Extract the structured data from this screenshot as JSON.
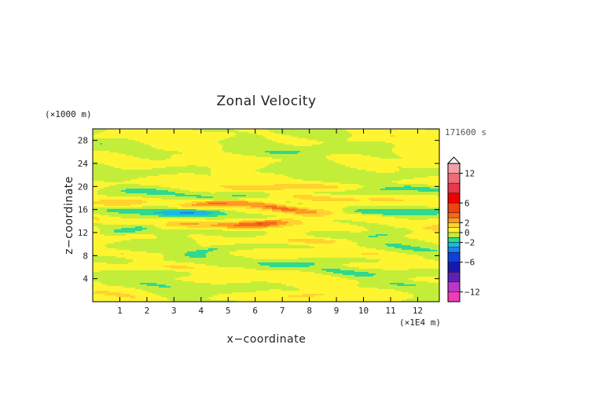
{
  "chart_data": {
    "type": "heatmap",
    "title": "Zonal Velocity",
    "xlabel": "x−coordinate",
    "ylabel": "z−coordinate",
    "x_unit_label": "(×1E4 m)",
    "y_unit_label": "(×1000 m)",
    "time_label": "171600 s",
    "xlim": [
      0,
      12.8
    ],
    "ylim": [
      0,
      30
    ],
    "x_ticks": [
      1,
      2,
      3,
      4,
      5,
      6,
      7,
      8,
      9,
      10,
      11,
      12
    ],
    "y_ticks": [
      4,
      8,
      12,
      16,
      20,
      24,
      28
    ],
    "grid": false,
    "colorbar": {
      "placement": "right",
      "range": [
        -14,
        14
      ],
      "tick_values": [
        12,
        6,
        2,
        0,
        -2,
        -6,
        -12
      ],
      "tick_labels": [
        "12",
        "6",
        "2",
        "0",
        "−2",
        "−6",
        "−12"
      ],
      "levels": [
        {
          "lo": 12,
          "hi": 14,
          "color": "#f4a0a8"
        },
        {
          "lo": 10,
          "hi": 12,
          "color": "#f06a78"
        },
        {
          "lo": 8,
          "hi": 10,
          "color": "#e8384a"
        },
        {
          "lo": 6,
          "hi": 8,
          "color": "#ee0000"
        },
        {
          "lo": 4,
          "hi": 6,
          "color": "#f04410"
        },
        {
          "lo": 3,
          "hi": 4,
          "color": "#f56a1a"
        },
        {
          "lo": 2,
          "hi": 3,
          "color": "#ff9a22"
        },
        {
          "lo": 1,
          "hi": 2,
          "color": "#ffd230"
        },
        {
          "lo": 0,
          "hi": 1,
          "color": "#fff430"
        },
        {
          "lo": -1,
          "hi": 0,
          "color": "#c2ee3a"
        },
        {
          "lo": -2,
          "hi": -1,
          "color": "#30d890"
        },
        {
          "lo": -3,
          "hi": -2,
          "color": "#19b8e8"
        },
        {
          "lo": -4,
          "hi": -3,
          "color": "#2380ea"
        },
        {
          "lo": -6,
          "hi": -4,
          "color": "#1040dc"
        },
        {
          "lo": -8,
          "hi": -6,
          "color": "#1818b0"
        },
        {
          "lo": -10,
          "hi": -8,
          "color": "#6020b8"
        },
        {
          "lo": -12,
          "hi": -10,
          "color": "#b838c8"
        },
        {
          "lo": -14,
          "hi": -12,
          "color": "#f03cb8"
        }
      ]
    },
    "field_bands": [
      {
        "z": 28.5,
        "amp": 0.6
      },
      {
        "z": 26.5,
        "amp": -0.9
      },
      {
        "z": 24.5,
        "amp": 0.5
      },
      {
        "z": 22.5,
        "amp": -0.7
      },
      {
        "z": 20.3,
        "amp": 1.8
      },
      {
        "z": 19.0,
        "amp": -1.6
      },
      {
        "z": 17.7,
        "amp": 1.5
      },
      {
        "z": 16.3,
        "amp": 3.2
      },
      {
        "z": 15.3,
        "amp": -2.6
      },
      {
        "z": 14.2,
        "amp": 1.2
      },
      {
        "z": 13.0,
        "amp": 3.0
      },
      {
        "z": 12.0,
        "amp": -1.4
      },
      {
        "z": 10.8,
        "amp": 1.3
      },
      {
        "z": 9.5,
        "amp": -1.2
      },
      {
        "z": 8.6,
        "amp": 0.9
      },
      {
        "z": 7.2,
        "amp": -1.3
      },
      {
        "z": 6.1,
        "amp": 1.0
      },
      {
        "z": 5.0,
        "amp": -1.2
      },
      {
        "z": 3.8,
        "amp": 0.9
      },
      {
        "z": 2.4,
        "amp": -0.8
      },
      {
        "z": 1.0,
        "amp": 1.1
      }
    ]
  }
}
